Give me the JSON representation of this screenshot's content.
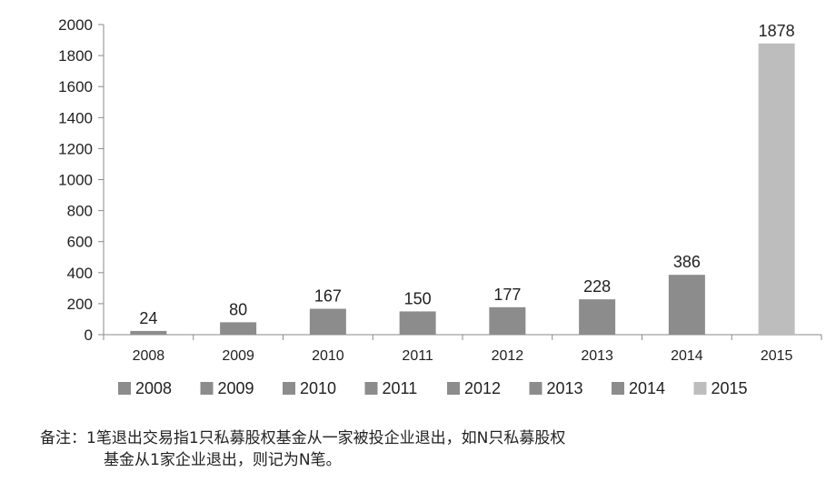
{
  "chart_data": {
    "type": "bar",
    "categories": [
      "2008",
      "2009",
      "2010",
      "2011",
      "2012",
      "2013",
      "2014",
      "2015"
    ],
    "values": [
      24,
      80,
      167,
      150,
      177,
      228,
      386,
      1878
    ],
    "data_labels": [
      "24",
      "80",
      "167",
      "150",
      "177",
      "228",
      "386",
      "1878"
    ],
    "y_ticks": [
      "0",
      "200",
      "400",
      "600",
      "800",
      "1000",
      "1200",
      "1400",
      "1600",
      "1800",
      "2000"
    ],
    "ylim": [
      0,
      2000
    ],
    "grid": false,
    "legend": [
      "2008",
      "2009",
      "2010",
      "2011",
      "2012",
      "2013",
      "2014",
      "2015"
    ],
    "legend_position": "bottom",
    "colors": {
      "2008": "#8c8c8c",
      "2009": "#8c8c8c",
      "2010": "#8c8c8c",
      "2011": "#8c8c8c",
      "2012": "#8c8c8c",
      "2013": "#8c8c8c",
      "2014": "#8c8c8c",
      "2015": "#bdbdbd"
    }
  },
  "note": {
    "line1": "备注：1笔退出交易指1只私募股权基金从一家被投企业退出，如N只私募股权",
    "line2": "基金从1家企业退出，则记为N笔。"
  }
}
